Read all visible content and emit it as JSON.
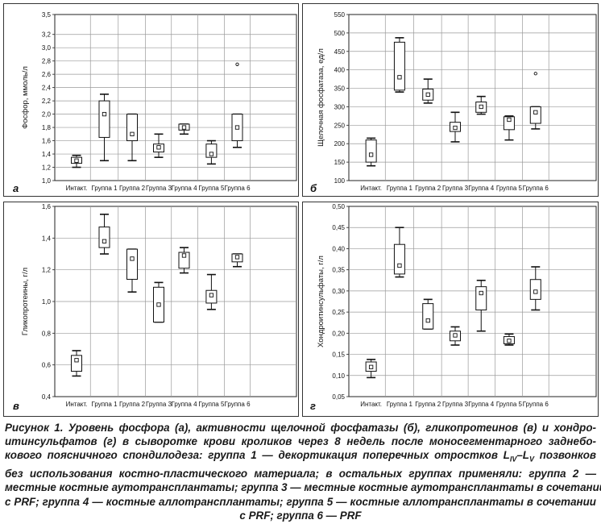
{
  "chart_data": [
    {
      "type": "box",
      "panel_label": "а",
      "ylabel": "Фосфор, ммоль/л",
      "ylim": [
        1.0,
        3.5
      ],
      "yticks": [
        1.0,
        1.2,
        1.4,
        1.6,
        1.8,
        2.0,
        2.2,
        2.4,
        2.6,
        2.8,
        3.0,
        3.2,
        3.5
      ],
      "ytick_labels": [
        "1,0",
        "1,2",
        "1,4",
        "1,6",
        "1,8",
        "2,0",
        "2,2",
        "2,4",
        "2,6",
        "2,8",
        "3,0",
        "3,2",
        "3,5"
      ],
      "categories": [
        "Интакт.",
        "Группа 1",
        "Группа 2",
        "Группа 3",
        "Группа 4",
        "Группа 5",
        "Группа 6"
      ],
      "boxes": [
        {
          "min": 1.2,
          "q1": 1.26,
          "median": 1.3,
          "q3": 1.35,
          "max": 1.38,
          "outliers": []
        },
        {
          "min": 1.3,
          "q1": 1.65,
          "median": 2.0,
          "q3": 2.2,
          "max": 2.3,
          "outliers": []
        },
        {
          "min": 1.3,
          "q1": 1.6,
          "median": 1.7,
          "q3": 2.0,
          "max": 2.0,
          "outliers": []
        },
        {
          "min": 1.35,
          "q1": 1.43,
          "median": 1.5,
          "q3": 1.55,
          "max": 1.7,
          "outliers": []
        },
        {
          "min": 1.7,
          "q1": 1.76,
          "median": 1.8,
          "q3": 1.85,
          "max": 1.85,
          "outliers": []
        },
        {
          "min": 1.25,
          "q1": 1.35,
          "median": 1.4,
          "q3": 1.55,
          "max": 1.6,
          "outliers": []
        },
        {
          "min": 1.5,
          "q1": 1.6,
          "median": 1.8,
          "q3": 2.0,
          "max": 2.0,
          "outliers": [
            2.75
          ]
        }
      ]
    },
    {
      "type": "box",
      "panel_label": "б",
      "ylabel": "Щелочная фосфатаза, ед/л",
      "ylim": [
        100,
        550
      ],
      "yticks": [
        100,
        150,
        200,
        250,
        300,
        350,
        400,
        450,
        500,
        550
      ],
      "ytick_labels": [
        "100",
        "150",
        "200",
        "250",
        "300",
        "350",
        "400",
        "450",
        "500",
        "550"
      ],
      "categories": [
        "Интакт.",
        "Группа 1",
        "Группа 2",
        "Группа 3",
        "Группа 4",
        "Группа 5",
        "Группа 6"
      ],
      "boxes": [
        {
          "min": 140,
          "q1": 150,
          "median": 170,
          "q3": 210,
          "max": 215,
          "outliers": []
        },
        {
          "min": 340,
          "q1": 345,
          "median": 380,
          "q3": 475,
          "max": 487,
          "outliers": []
        },
        {
          "min": 310,
          "q1": 318,
          "median": 333,
          "q3": 348,
          "max": 375,
          "outliers": []
        },
        {
          "min": 205,
          "q1": 233,
          "median": 243,
          "q3": 258,
          "max": 285,
          "outliers": []
        },
        {
          "min": 280,
          "q1": 285,
          "median": 300,
          "q3": 313,
          "max": 328,
          "outliers": []
        },
        {
          "min": 210,
          "q1": 238,
          "median": 265,
          "q3": 273,
          "max": 275,
          "outliers": []
        },
        {
          "min": 240,
          "q1": 255,
          "median": 285,
          "q3": 300,
          "max": 300,
          "outliers": [
            390
          ]
        }
      ]
    },
    {
      "type": "box",
      "panel_label": "в",
      "ylabel": "Гликопротеины, г/л",
      "ylim": [
        0.4,
        1.6
      ],
      "yticks": [
        0.4,
        0.6,
        0.8,
        1.0,
        1.2,
        1.4,
        1.6
      ],
      "ytick_labels": [
        "0,4",
        "0,6",
        "0,8",
        "1,0",
        "1,2",
        "1,4",
        "1,6"
      ],
      "categories": [
        "Интакт.",
        "Группа 1",
        "Группа 2",
        "Группа 3",
        "Группа 4",
        "Группа 5",
        "Группа 6"
      ],
      "boxes": [
        {
          "min": 0.53,
          "q1": 0.56,
          "median": 0.63,
          "q3": 0.66,
          "max": 0.69,
          "outliers": []
        },
        {
          "min": 1.3,
          "q1": 1.34,
          "median": 1.38,
          "q3": 1.47,
          "max": 1.55,
          "outliers": []
        },
        {
          "min": 1.06,
          "q1": 1.14,
          "median": 1.27,
          "q3": 1.33,
          "max": 1.33,
          "outliers": []
        },
        {
          "min": 0.87,
          "q1": 0.87,
          "median": 0.98,
          "q3": 1.09,
          "max": 1.12,
          "outliers": []
        },
        {
          "min": 1.18,
          "q1": 1.21,
          "median": 1.29,
          "q3": 1.31,
          "max": 1.34,
          "outliers": []
        },
        {
          "min": 0.95,
          "q1": 0.99,
          "median": 1.04,
          "q3": 1.07,
          "max": 1.17,
          "outliers": []
        },
        {
          "min": 1.22,
          "q1": 1.25,
          "median": 1.28,
          "q3": 1.3,
          "max": 1.3,
          "outliers": []
        }
      ]
    },
    {
      "type": "box",
      "panel_label": "г",
      "ylabel": "Хондроитинсульфаты, г/л",
      "ylim": [
        0.05,
        0.5
      ],
      "yticks": [
        0.05,
        0.1,
        0.15,
        0.2,
        0.25,
        0.3,
        0.35,
        0.4,
        0.45,
        0.5
      ],
      "ytick_labels": [
        "0,05",
        "0,10",
        "0,15",
        "0,20",
        "0,25",
        "0,30",
        "0,35",
        "0,40",
        "0,45",
        "0,50"
      ],
      "categories": [
        "Интакт.",
        "Группа 1",
        "Группа 2",
        "Группа 3",
        "Группа 4",
        "Группа 5",
        "Группа 6"
      ],
      "boxes": [
        {
          "min": 0.095,
          "q1": 0.11,
          "median": 0.12,
          "q3": 0.132,
          "max": 0.138,
          "outliers": []
        },
        {
          "min": 0.333,
          "q1": 0.34,
          "median": 0.36,
          "q3": 0.41,
          "max": 0.45,
          "outliers": []
        },
        {
          "min": 0.21,
          "q1": 0.21,
          "median": 0.23,
          "q3": 0.27,
          "max": 0.28,
          "outliers": []
        },
        {
          "min": 0.172,
          "q1": 0.182,
          "median": 0.195,
          "q3": 0.205,
          "max": 0.215,
          "outliers": []
        },
        {
          "min": 0.205,
          "q1": 0.255,
          "median": 0.295,
          "q3": 0.31,
          "max": 0.325,
          "outliers": []
        },
        {
          "min": 0.172,
          "q1": 0.175,
          "median": 0.182,
          "q3": 0.192,
          "max": 0.198,
          "outliers": []
        },
        {
          "min": 0.255,
          "q1": 0.28,
          "median": 0.298,
          "q3": 0.327,
          "max": 0.357,
          "outliers": []
        }
      ]
    }
  ],
  "caption": {
    "line1": "Рисунок 1. Уровень фосфора (а), активности щелочной фосфатазы (б), гликопротеинов (в) и хондро-",
    "line2": "итинсульфатов (г) в сыворотке крови кроликов через 8 недель после моносегментарного заднебо-",
    "line3_before": "кового поясничного спондилодеза: группа 1 — декортикация поперечных отростков L",
    "line3_sub1": "IV",
    "line3_mid": "–L",
    "line3_sub2": "V",
    "line3_after": " позвонков",
    "line4": "без использования костно-пластического материала; в остальных группах применяли: группа 2 —",
    "line5": "местные костные аутотрансплантаты; группа 3 — местные костные аутотрансплантаты в сочетании",
    "line6": "с PRF; группа 4 — костные аллотрансплантаты; группа 5 — костные аллотрансплантаты в сочетании",
    "line7": "с PRF; группа 6 — PRF"
  }
}
